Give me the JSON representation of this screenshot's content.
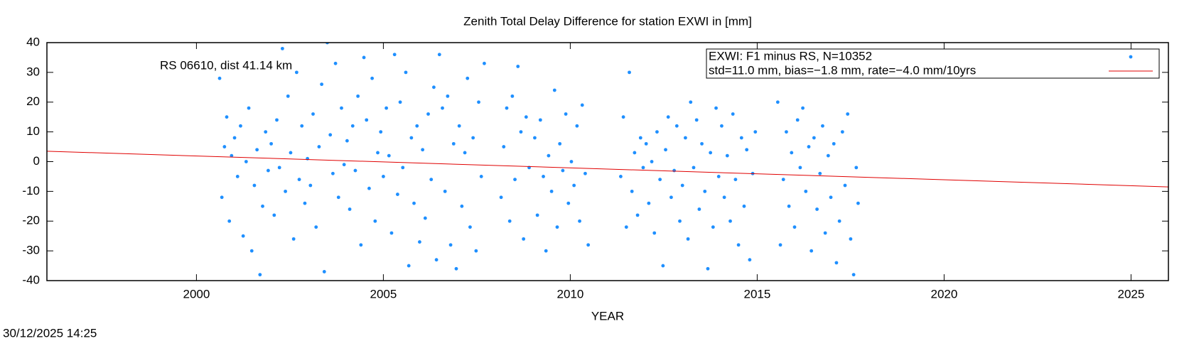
{
  "chart_data": {
    "type": "scatter",
    "title": "Zenith Total Delay Difference for station EXWI in [mm]",
    "x_label": "YEAR",
    "annotation": "RS 06610, dist 41.14 km",
    "footer": "30/12/2025 14:25",
    "xlim": [
      1996,
      2026
    ],
    "xticks": [
      2000,
      2005,
      2010,
      2015,
      2020,
      2025
    ],
    "ylim": [
      -40,
      40
    ],
    "yticks": [
      -40,
      -30,
      -20,
      -10,
      0,
      10,
      20,
      30,
      40
    ],
    "grid": false,
    "legend": "top-right",
    "series": [
      {
        "name": "EXWI: F1 minus RS, N=10352",
        "style": "points",
        "color": "#1e8fff",
        "x": [
          2000.62,
          2000.68,
          2000.75,
          2000.81,
          2000.88,
          2000.94,
          2001.02,
          2001.1,
          2001.18,
          2001.25,
          2001.33,
          2001.4,
          2001.48,
          2001.55,
          2001.62,
          2001.7,
          2001.77,
          2001.85,
          2001.92,
          2002.0,
          2002.08,
          2002.15,
          2002.22,
          2002.3,
          2002.38,
          2002.45,
          2002.52,
          2002.6,
          2002.68,
          2002.75,
          2002.82,
          2002.9,
          2002.97,
          2003.05,
          2003.12,
          2003.2,
          2003.28,
          2003.35,
          2003.42,
          2003.5,
          2003.58,
          2003.65,
          2003.72,
          2003.8,
          2003.88,
          2003.95,
          2004.03,
          2004.1,
          2004.18,
          2004.25,
          2004.32,
          2004.4,
          2004.48,
          2004.55,
          2004.62,
          2004.7,
          2004.78,
          2004.85,
          2004.93,
          2005.0,
          2005.08,
          2005.15,
          2005.22,
          2005.3,
          2005.38,
          2005.45,
          2005.52,
          2005.6,
          2005.68,
          2005.75,
          2005.82,
          2005.9,
          2005.97,
          2006.05,
          2006.12,
          2006.2,
          2006.28,
          2006.35,
          2006.42,
          2006.5,
          2006.58,
          2006.65,
          2006.72,
          2006.8,
          2006.88,
          2006.95,
          2007.03,
          2007.1,
          2007.18,
          2007.25,
          2007.32,
          2007.4,
          2007.48,
          2007.55,
          2007.62,
          2007.7,
          2008.15,
          2008.22,
          2008.3,
          2008.38,
          2008.45,
          2008.52,
          2008.6,
          2008.68,
          2008.75,
          2008.82,
          2008.9,
          2009.05,
          2009.12,
          2009.2,
          2009.28,
          2009.35,
          2009.42,
          2009.5,
          2009.58,
          2009.65,
          2009.72,
          2009.8,
          2009.88,
          2009.95,
          2010.03,
          2010.1,
          2010.18,
          2010.25,
          2010.32,
          2010.4,
          2010.48,
          2011.35,
          2011.42,
          2011.5,
          2011.58,
          2011.65,
          2011.72,
          2011.8,
          2011.88,
          2011.95,
          2012.03,
          2012.1,
          2012.18,
          2012.25,
          2012.32,
          2012.4,
          2012.48,
          2012.55,
          2012.62,
          2012.7,
          2012.78,
          2012.85,
          2012.93,
          2013.0,
          2013.08,
          2013.15,
          2013.22,
          2013.3,
          2013.38,
          2013.45,
          2013.52,
          2013.6,
          2013.68,
          2013.75,
          2013.82,
          2013.9,
          2013.97,
          2014.05,
          2014.12,
          2014.2,
          2014.28,
          2014.35,
          2014.42,
          2014.5,
          2014.58,
          2014.65,
          2014.72,
          2014.8,
          2014.88,
          2014.95,
          2015.55,
          2015.62,
          2015.7,
          2015.78,
          2015.85,
          2015.92,
          2016.0,
          2016.08,
          2016.15,
          2016.22,
          2016.3,
          2016.38,
          2016.45,
          2016.52,
          2016.6,
          2016.68,
          2016.75,
          2016.82,
          2016.9,
          2016.97,
          2017.05,
          2017.12,
          2017.2,
          2017.28,
          2017.35,
          2017.42,
          2017.5,
          2017.58,
          2017.65,
          2017.7
        ],
        "values": [
          28,
          -12,
          5,
          15,
          -20,
          2,
          8,
          -5,
          12,
          -25,
          0,
          18,
          -30,
          -8,
          4,
          -38,
          -15,
          10,
          -3,
          6,
          -18,
          14,
          -2,
          38,
          -10,
          22,
          3,
          -26,
          30,
          -6,
          12,
          -14,
          1,
          -8,
          16,
          -22,
          5,
          26,
          -37,
          40,
          9,
          -4,
          33,
          -12,
          18,
          -1,
          7,
          -16,
          12,
          -3,
          22,
          -28,
          35,
          14,
          -9,
          28,
          -20,
          3,
          10,
          -5,
          18,
          2,
          -24,
          36,
          -11,
          20,
          -2,
          30,
          -35,
          8,
          -14,
          12,
          -27,
          4,
          -19,
          16,
          -6,
          25,
          -33,
          36,
          18,
          -10,
          22,
          -28,
          6,
          -36,
          12,
          -15,
          3,
          28,
          -22,
          8,
          -30,
          20,
          -5,
          33,
          -12,
          5,
          18,
          -20,
          22,
          -6,
          32,
          10,
          -26,
          15,
          -2,
          8,
          -18,
          14,
          -5,
          -30,
          2,
          -10,
          24,
          -22,
          6,
          -3,
          16,
          -14,
          0,
          -8,
          12,
          -20,
          19,
          -4,
          -28,
          -5,
          15,
          -22,
          30,
          -10,
          3,
          -18,
          8,
          -2,
          6,
          -14,
          0,
          -24,
          10,
          -6,
          -35,
          4,
          15,
          -12,
          -3,
          12,
          -20,
          -8,
          8,
          -26,
          20,
          -2,
          14,
          -16,
          6,
          -10,
          -36,
          3,
          -22,
          18,
          -5,
          12,
          -12,
          2,
          -20,
          16,
          -6,
          -28,
          8,
          -15,
          4,
          -33,
          -4,
          10,
          20,
          -28,
          -6,
          10,
          -15,
          3,
          -22,
          14,
          -2,
          18,
          -10,
          5,
          -30,
          8,
          -16,
          -4,
          12,
          -24,
          2,
          -12,
          6,
          -34,
          -20,
          10,
          -8,
          16,
          -26,
          -38,
          -2,
          -14
        ]
      },
      {
        "name": "std=11.0 mm, bias=−1.8 mm, rate=−4.0 mm/10yrs",
        "style": "line",
        "color": "#e00000",
        "x": [
          1996,
          2026
        ],
        "values": [
          3.5,
          -8.5
        ]
      }
    ]
  }
}
